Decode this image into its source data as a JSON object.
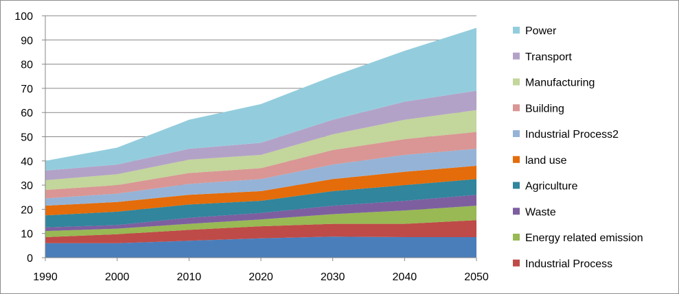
{
  "chart_data": {
    "type": "area",
    "stacked": true,
    "title": "",
    "xlabel": "",
    "ylabel": "",
    "x": [
      1990,
      2000,
      2010,
      2020,
      2030,
      2040,
      2050
    ],
    "x_ticks": [
      "1990",
      "2000",
      "2010",
      "2020",
      "2030",
      "2040",
      "2050"
    ],
    "ylim": [
      0,
      100
    ],
    "y_ticks": [
      "0",
      "10",
      "20",
      "30",
      "40",
      "50",
      "60",
      "70",
      "80",
      "90",
      "100"
    ],
    "grid": "horizontal",
    "legend_position": "right",
    "series": [
      {
        "name": "Industrial Process",
        "color": "#BE4B48",
        "values": [
          2.5,
          3.7,
          4.5,
          5,
          5.3,
          5.5,
          7
        ]
      },
      {
        "name": "Energy related emission",
        "color": "#98B954",
        "values": [
          2.5,
          2.3,
          2.5,
          2.8,
          4,
          5.5,
          6
        ]
      },
      {
        "name": "Waste",
        "color": "#7D5FA0",
        "values": [
          1.5,
          1.5,
          2.5,
          2.7,
          3.5,
          4,
          4.5
        ]
      },
      {
        "name": "Agriculture",
        "color": "#31859C",
        "values": [
          5,
          5.5,
          5.5,
          5,
          6,
          6.5,
          6.5
        ]
      },
      {
        "name": "land use",
        "color": "#E46C0A",
        "values": [
          4,
          4,
          4,
          4,
          5,
          5.5,
          5.5
        ]
      },
      {
        "name": "Industrial Process2",
        "color": "#95B3D7",
        "values": [
          3,
          3.5,
          4.5,
          5,
          6,
          7,
          7
        ]
      },
      {
        "name": "Building",
        "color": "#D99694",
        "values": [
          3.5,
          3.5,
          4.5,
          4.5,
          6,
          6.5,
          7
        ]
      },
      {
        "name": "Manufacturing",
        "color": "#C3D69B",
        "values": [
          4,
          4.5,
          5.5,
          5.5,
          6.5,
          8,
          9
        ]
      },
      {
        "name": "Transport",
        "color": "#B3A2C7",
        "values": [
          4,
          4,
          4.5,
          5,
          6,
          7.5,
          8
        ]
      },
      {
        "name": "Power",
        "color": "#93CDDD",
        "values": [
          4,
          7,
          12,
          16,
          18,
          21,
          26
        ]
      },
      {
        "name": "",
        "color": "#4A7EBB",
        "values": [
          6,
          6,
          7,
          8,
          8.7,
          8.5,
          8.5
        ],
        "base": true
      }
    ],
    "legend": [
      {
        "label": "Power",
        "color": "#93CDDD"
      },
      {
        "label": "Transport",
        "color": "#B3A2C7"
      },
      {
        "label": "Manufacturing",
        "color": "#C3D69B"
      },
      {
        "label": "Building",
        "color": "#D99694"
      },
      {
        "label": "Industrial Process2",
        "color": "#95B3D7"
      },
      {
        "label": "land use",
        "color": "#E46C0A"
      },
      {
        "label": "Agriculture",
        "color": "#31859C"
      },
      {
        "label": "Waste",
        "color": "#7D5FA0"
      },
      {
        "label": "Energy related emission",
        "color": "#98B954"
      },
      {
        "label": "Industrial Process",
        "color": "#BE4B48"
      }
    ]
  }
}
